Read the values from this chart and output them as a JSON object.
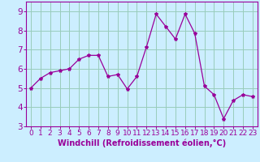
{
  "x": [
    0,
    1,
    2,
    3,
    4,
    5,
    6,
    7,
    8,
    9,
    10,
    11,
    12,
    13,
    14,
    15,
    16,
    17,
    18,
    19,
    20,
    21,
    22,
    23
  ],
  "y": [
    5.0,
    5.5,
    5.8,
    5.9,
    6.0,
    6.5,
    6.7,
    6.7,
    5.6,
    5.7,
    4.95,
    5.6,
    7.15,
    8.85,
    8.2,
    7.55,
    8.85,
    7.85,
    5.1,
    4.65,
    3.4,
    4.35,
    4.65,
    4.55
  ],
  "line_color": "#990099",
  "marker": "*",
  "marker_size": 3,
  "bg_color": "#cceeff",
  "grid_color": "#99ccbb",
  "xlabel": "Windchill (Refroidissement éolien,°C)",
  "xlim": [
    -0.5,
    23.5
  ],
  "ylim": [
    3,
    9.5
  ],
  "xtick_labels": [
    "0",
    "1",
    "2",
    "3",
    "4",
    "5",
    "6",
    "7",
    "8",
    "9",
    "10",
    "11",
    "12",
    "13",
    "14",
    "15",
    "16",
    "17",
    "18",
    "19",
    "20",
    "21",
    "22",
    "23"
  ],
  "ytick_values": [
    3,
    4,
    5,
    6,
    7,
    8,
    9
  ],
  "spine_color": "#990099",
  "label_color": "#990099",
  "tick_color": "#990099",
  "xlabel_fontsize": 7.0,
  "xtick_fontsize": 6.5,
  "ytick_fontsize": 7.5
}
